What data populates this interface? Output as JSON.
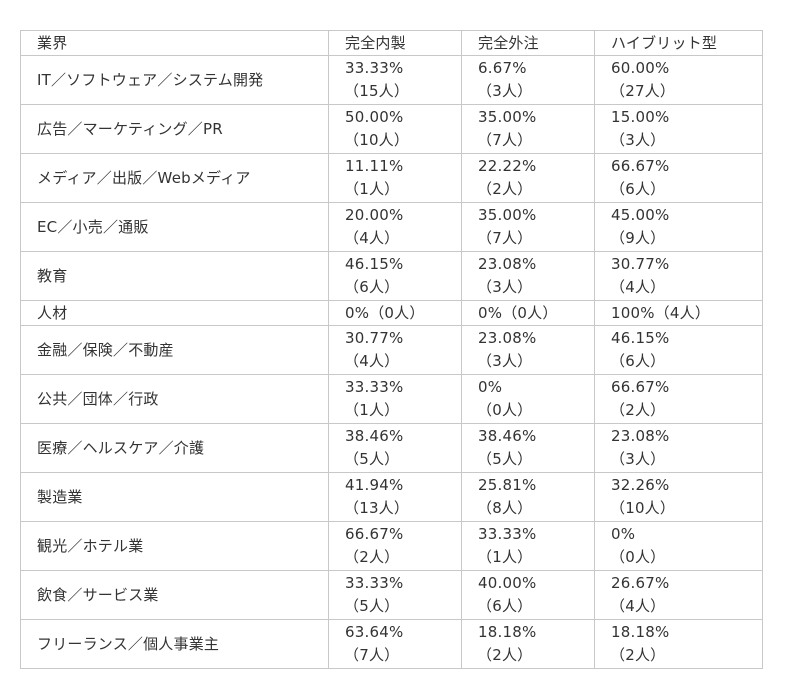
{
  "table": {
    "headers": [
      "業界",
      "完全内製",
      "完全外注",
      "ハイブリット型"
    ],
    "rows": [
      {
        "industry": "IT／ソフトウェア／システム開発",
        "inhouse": {
          "pct": "33.33%",
          "count": "（15人）"
        },
        "outsource": {
          "pct": "6.67%",
          "count": "（3人）"
        },
        "hybrid": {
          "pct": "60.00%",
          "count": "（27人）"
        }
      },
      {
        "industry": "広告／マーケティング／PR",
        "inhouse": {
          "pct": "50.00%",
          "count": "（10人）"
        },
        "outsource": {
          "pct": "35.00%",
          "count": "（7人）"
        },
        "hybrid": {
          "pct": "15.00%",
          "count": "（3人）"
        }
      },
      {
        "industry": "メディア／出版／Webメディア",
        "inhouse": {
          "pct": "11.11%",
          "count": "（1人）"
        },
        "outsource": {
          "pct": "22.22%",
          "count": "（2人）"
        },
        "hybrid": {
          "pct": "66.67%",
          "count": "（6人）"
        }
      },
      {
        "industry": "EC／小売／通販",
        "inhouse": {
          "pct": "20.00%",
          "count": "（4人）"
        },
        "outsource": {
          "pct": "35.00%",
          "count": "（7人）"
        },
        "hybrid": {
          "pct": "45.00%",
          "count": "（9人）"
        }
      },
      {
        "industry": "教育",
        "inhouse": {
          "pct": "46.15%",
          "count": "（6人）"
        },
        "outsource": {
          "pct": "23.08%",
          "count": "（3人）"
        },
        "hybrid": {
          "pct": "30.77%",
          "count": "（4人）"
        }
      },
      {
        "industry": "人材",
        "inhouse": {
          "pct": "0%（0人）",
          "count": ""
        },
        "outsource": {
          "pct": "0%（0人）",
          "count": ""
        },
        "hybrid": {
          "pct": "100%（4人）",
          "count": ""
        }
      },
      {
        "industry": "金融／保険／不動産",
        "inhouse": {
          "pct": "30.77%",
          "count": "（4人）"
        },
        "outsource": {
          "pct": "23.08%",
          "count": "（3人）"
        },
        "hybrid": {
          "pct": "46.15%",
          "count": "（6人）"
        }
      },
      {
        "industry": "公共／団体／行政",
        "inhouse": {
          "pct": "33.33%",
          "count": "（1人）"
        },
        "outsource": {
          "pct": "0%",
          "count": "（0人）"
        },
        "hybrid": {
          "pct": "66.67%",
          "count": "（2人）"
        }
      },
      {
        "industry": "医療／ヘルスケア／介護",
        "inhouse": {
          "pct": "38.46%",
          "count": "（5人）"
        },
        "outsource": {
          "pct": "38.46%",
          "count": "（5人）"
        },
        "hybrid": {
          "pct": "23.08%",
          "count": "（3人）"
        }
      },
      {
        "industry": "製造業",
        "inhouse": {
          "pct": "41.94%",
          "count": "（13人）"
        },
        "outsource": {
          "pct": "25.81%",
          "count": "（8人）"
        },
        "hybrid": {
          "pct": "32.26%",
          "count": "（10人）"
        }
      },
      {
        "industry": "観光／ホテル業",
        "inhouse": {
          "pct": "66.67%",
          "count": "（2人）"
        },
        "outsource": {
          "pct": "33.33%",
          "count": "（1人）"
        },
        "hybrid": {
          "pct": "0%",
          "count": "（0人）"
        }
      },
      {
        "industry": "飲食／サービス業",
        "inhouse": {
          "pct": "33.33%",
          "count": "（5人）"
        },
        "outsource": {
          "pct": "40.00%",
          "count": "（6人）"
        },
        "hybrid": {
          "pct": "26.67%",
          "count": "（4人）"
        }
      },
      {
        "industry": "フリーランス／個人事業主",
        "inhouse": {
          "pct": "63.64%",
          "count": "（7人）"
        },
        "outsource": {
          "pct": "18.18%",
          "count": "（2人）"
        },
        "hybrid": {
          "pct": "18.18%",
          "count": "（2人）"
        }
      }
    ]
  }
}
